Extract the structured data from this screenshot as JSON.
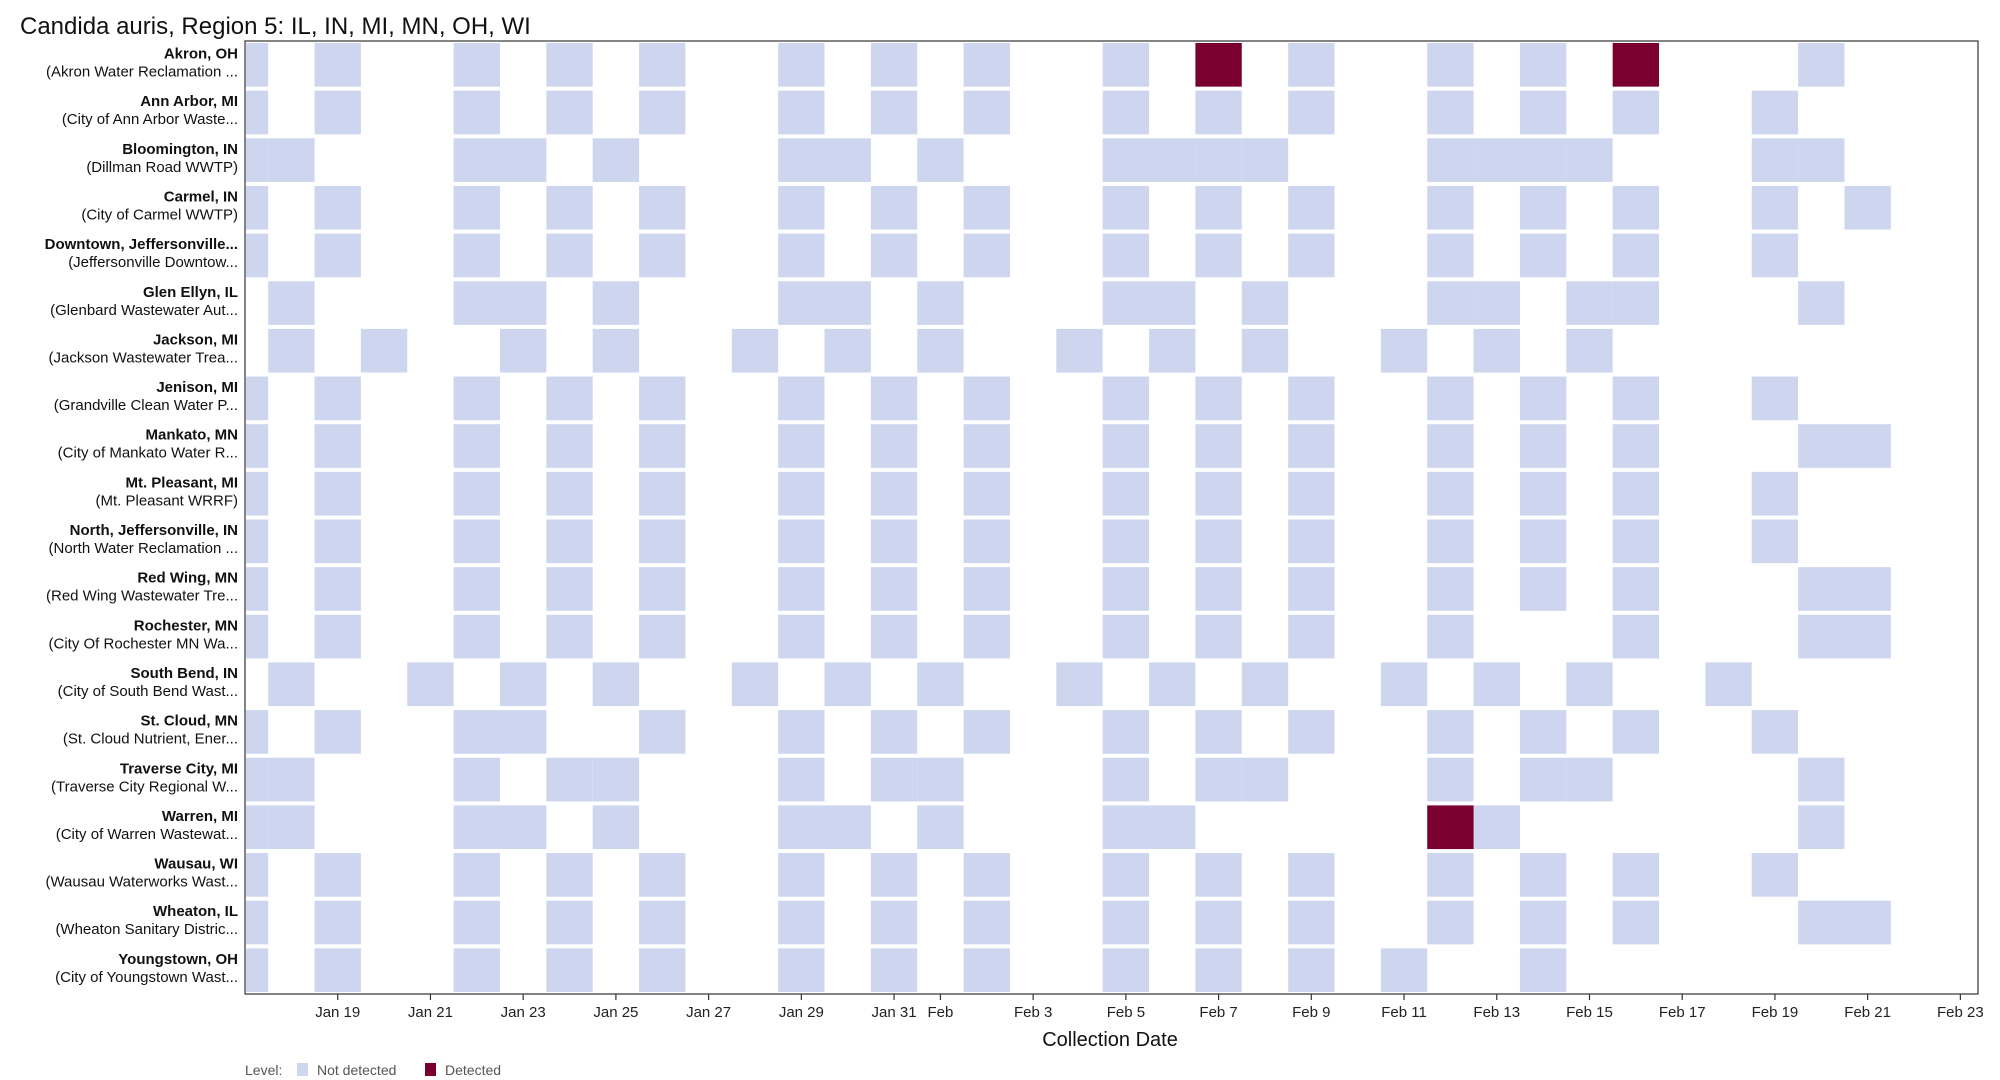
{
  "chart_data": {
    "type": "heatmap",
    "title": "Candida auris, Region 5: IL, IN, MI, MN, OH, WI",
    "xlabel": "Collection Date",
    "x_axis_type": "date",
    "xlim": [
      "2025-01-17",
      "2025-02-23"
    ],
    "x_tick_labels": [
      "Jan 19",
      "Jan 21",
      "Jan 23",
      "Jan 25",
      "Jan 27",
      "Jan 29",
      "Jan 31",
      "Feb",
      "Feb 3",
      "Feb 5",
      "Feb 7",
      "Feb 9",
      "Feb 11",
      "Feb 13",
      "Feb 15",
      "Feb 17",
      "Feb 19",
      "Feb 21",
      "Feb 23"
    ],
    "x_tick_dates": [
      "2025-01-19",
      "2025-01-21",
      "2025-01-23",
      "2025-01-25",
      "2025-01-27",
      "2025-01-29",
      "2025-01-31",
      "2025-02-01",
      "2025-02-03",
      "2025-02-05",
      "2025-02-07",
      "2025-02-09",
      "2025-02-11",
      "2025-02-13",
      "2025-02-15",
      "2025-02-17",
      "2025-02-19",
      "2025-02-21",
      "2025-02-23"
    ],
    "legend": {
      "title": "Level:",
      "position": "bottom-left",
      "items": [
        {
          "key": "not_detected",
          "label": "Not detected",
          "color": "#ced6ef"
        },
        {
          "key": "detected",
          "label": "Detected",
          "color": "#7a0030"
        }
      ]
    },
    "rows": [
      {
        "site": "Akron, OH",
        "plant": "(Akron Water Reclamation ...",
        "not_detected": [
          "2025-01-17",
          "2025-01-19",
          "2025-01-22",
          "2025-01-24",
          "2025-01-26",
          "2025-01-29",
          "2025-01-31",
          "2025-02-02",
          "2025-02-05",
          "2025-02-09",
          "2025-02-12",
          "2025-02-14",
          "2025-02-20"
        ],
        "detected": [
          "2025-02-07",
          "2025-02-16"
        ]
      },
      {
        "site": "Ann Arbor, MI",
        "plant": "(City of Ann Arbor Waste...",
        "not_detected": [
          "2025-01-17",
          "2025-01-19",
          "2025-01-22",
          "2025-01-24",
          "2025-01-26",
          "2025-01-29",
          "2025-01-31",
          "2025-02-02",
          "2025-02-05",
          "2025-02-07",
          "2025-02-09",
          "2025-02-12",
          "2025-02-14",
          "2025-02-16",
          "2025-02-19"
        ],
        "detected": []
      },
      {
        "site": "Bloomington, IN",
        "plant": "(Dillman Road WWTP)",
        "not_detected": [
          "2025-01-17",
          "2025-01-18",
          "2025-01-22",
          "2025-01-23",
          "2025-01-25",
          "2025-01-29",
          "2025-01-30",
          "2025-02-01",
          "2025-02-05",
          "2025-02-06",
          "2025-02-07",
          "2025-02-08",
          "2025-02-12",
          "2025-02-13",
          "2025-02-14",
          "2025-02-15",
          "2025-02-19",
          "2025-02-20"
        ],
        "detected": []
      },
      {
        "site": "Carmel, IN",
        "plant": "(City of Carmel WWTP)",
        "not_detected": [
          "2025-01-17",
          "2025-01-19",
          "2025-01-22",
          "2025-01-24",
          "2025-01-26",
          "2025-01-29",
          "2025-01-31",
          "2025-02-02",
          "2025-02-05",
          "2025-02-07",
          "2025-02-09",
          "2025-02-12",
          "2025-02-14",
          "2025-02-16",
          "2025-02-19",
          "2025-02-21"
        ],
        "detected": []
      },
      {
        "site": "Downtown, Jeffersonville...",
        "plant": "(Jeffersonville Downtow...",
        "not_detected": [
          "2025-01-17",
          "2025-01-19",
          "2025-01-22",
          "2025-01-24",
          "2025-01-26",
          "2025-01-29",
          "2025-01-31",
          "2025-02-02",
          "2025-02-05",
          "2025-02-07",
          "2025-02-09",
          "2025-02-12",
          "2025-02-14",
          "2025-02-16",
          "2025-02-19"
        ],
        "detected": []
      },
      {
        "site": "Glen Ellyn, IL",
        "plant": "(Glenbard Wastewater Aut...",
        "not_detected": [
          "2025-01-18",
          "2025-01-22",
          "2025-01-23",
          "2025-01-25",
          "2025-01-29",
          "2025-01-30",
          "2025-02-01",
          "2025-02-05",
          "2025-02-06",
          "2025-02-08",
          "2025-02-12",
          "2025-02-13",
          "2025-02-15",
          "2025-02-16",
          "2025-02-20"
        ],
        "detected": []
      },
      {
        "site": "Jackson, MI",
        "plant": "(Jackson Wastewater Trea...",
        "not_detected": [
          "2025-01-18",
          "2025-01-20",
          "2025-01-23",
          "2025-01-25",
          "2025-01-28",
          "2025-01-30",
          "2025-02-01",
          "2025-02-04",
          "2025-02-06",
          "2025-02-08",
          "2025-02-11",
          "2025-02-13",
          "2025-02-15"
        ],
        "detected": []
      },
      {
        "site": "Jenison, MI",
        "plant": "(Grandville Clean Water P...",
        "not_detected": [
          "2025-01-17",
          "2025-01-19",
          "2025-01-22",
          "2025-01-24",
          "2025-01-26",
          "2025-01-29",
          "2025-01-31",
          "2025-02-02",
          "2025-02-05",
          "2025-02-07",
          "2025-02-09",
          "2025-02-12",
          "2025-02-14",
          "2025-02-16",
          "2025-02-19"
        ],
        "detected": []
      },
      {
        "site": "Mankato, MN",
        "plant": "(City of Mankato Water R...",
        "not_detected": [
          "2025-01-17",
          "2025-01-19",
          "2025-01-22",
          "2025-01-24",
          "2025-01-26",
          "2025-01-29",
          "2025-01-31",
          "2025-02-02",
          "2025-02-05",
          "2025-02-07",
          "2025-02-09",
          "2025-02-12",
          "2025-02-14",
          "2025-02-16",
          "2025-02-20",
          "2025-02-21"
        ],
        "detected": []
      },
      {
        "site": "Mt. Pleasant, MI",
        "plant": "(Mt. Pleasant WRRF)",
        "not_detected": [
          "2025-01-17",
          "2025-01-19",
          "2025-01-22",
          "2025-01-24",
          "2025-01-26",
          "2025-01-29",
          "2025-01-31",
          "2025-02-02",
          "2025-02-05",
          "2025-02-07",
          "2025-02-09",
          "2025-02-12",
          "2025-02-14",
          "2025-02-16",
          "2025-02-19"
        ],
        "detected": []
      },
      {
        "site": "North, Jeffersonville, IN",
        "plant": "(North Water Reclamation ...",
        "not_detected": [
          "2025-01-17",
          "2025-01-19",
          "2025-01-22",
          "2025-01-24",
          "2025-01-26",
          "2025-01-29",
          "2025-01-31",
          "2025-02-02",
          "2025-02-05",
          "2025-02-07",
          "2025-02-09",
          "2025-02-12",
          "2025-02-14",
          "2025-02-16",
          "2025-02-19"
        ],
        "detected": []
      },
      {
        "site": "Red Wing, MN",
        "plant": "(Red Wing Wastewater Tre...",
        "not_detected": [
          "2025-01-17",
          "2025-01-19",
          "2025-01-22",
          "2025-01-24",
          "2025-01-26",
          "2025-01-29",
          "2025-01-31",
          "2025-02-02",
          "2025-02-05",
          "2025-02-07",
          "2025-02-09",
          "2025-02-12",
          "2025-02-14",
          "2025-02-16",
          "2025-02-20",
          "2025-02-21"
        ],
        "detected": []
      },
      {
        "site": "Rochester, MN",
        "plant": "(City Of Rochester MN Wa...",
        "not_detected": [
          "2025-01-17",
          "2025-01-19",
          "2025-01-22",
          "2025-01-24",
          "2025-01-26",
          "2025-01-29",
          "2025-01-31",
          "2025-02-02",
          "2025-02-05",
          "2025-02-07",
          "2025-02-09",
          "2025-02-12",
          "2025-02-16",
          "2025-02-20",
          "2025-02-21"
        ],
        "detected": []
      },
      {
        "site": "South Bend, IN",
        "plant": "(City of South Bend Wast...",
        "not_detected": [
          "2025-01-18",
          "2025-01-21",
          "2025-01-23",
          "2025-01-25",
          "2025-01-28",
          "2025-01-30",
          "2025-02-01",
          "2025-02-04",
          "2025-02-06",
          "2025-02-08",
          "2025-02-11",
          "2025-02-13",
          "2025-02-15",
          "2025-02-18"
        ],
        "detected": []
      },
      {
        "site": "St. Cloud, MN",
        "plant": "(St. Cloud Nutrient, Ener...",
        "not_detected": [
          "2025-01-17",
          "2025-01-19",
          "2025-01-22",
          "2025-01-23",
          "2025-01-26",
          "2025-01-29",
          "2025-01-31",
          "2025-02-02",
          "2025-02-05",
          "2025-02-07",
          "2025-02-09",
          "2025-02-12",
          "2025-02-14",
          "2025-02-16",
          "2025-02-19"
        ],
        "detected": []
      },
      {
        "site": "Traverse City, MI",
        "plant": "(Traverse City Regional W...",
        "not_detected": [
          "2025-01-17",
          "2025-01-18",
          "2025-01-22",
          "2025-01-24",
          "2025-01-25",
          "2025-01-29",
          "2025-01-31",
          "2025-02-01",
          "2025-02-05",
          "2025-02-07",
          "2025-02-08",
          "2025-02-12",
          "2025-02-14",
          "2025-02-15",
          "2025-02-20"
        ],
        "detected": []
      },
      {
        "site": "Warren, MI",
        "plant": "(City of Warren Wastewat...",
        "not_detected": [
          "2025-01-17",
          "2025-01-18",
          "2025-01-22",
          "2025-01-23",
          "2025-01-25",
          "2025-01-29",
          "2025-01-30",
          "2025-02-01",
          "2025-02-05",
          "2025-02-06",
          "2025-02-13",
          "2025-02-20"
        ],
        "detected": [
          "2025-02-12"
        ]
      },
      {
        "site": "Wausau, WI",
        "plant": "(Wausau Waterworks Wast...",
        "not_detected": [
          "2025-01-17",
          "2025-01-19",
          "2025-01-22",
          "2025-01-24",
          "2025-01-26",
          "2025-01-29",
          "2025-01-31",
          "2025-02-02",
          "2025-02-05",
          "2025-02-07",
          "2025-02-09",
          "2025-02-12",
          "2025-02-14",
          "2025-02-16",
          "2025-02-19"
        ],
        "detected": []
      },
      {
        "site": "Wheaton, IL",
        "plant": "(Wheaton Sanitary Distric...",
        "not_detected": [
          "2025-01-17",
          "2025-01-19",
          "2025-01-22",
          "2025-01-24",
          "2025-01-26",
          "2025-01-29",
          "2025-01-31",
          "2025-02-02",
          "2025-02-05",
          "2025-02-07",
          "2025-02-09",
          "2025-02-12",
          "2025-02-14",
          "2025-02-16",
          "2025-02-20",
          "2025-02-21"
        ],
        "detected": []
      },
      {
        "site": "Youngstown, OH",
        "plant": "(City of Youngstown Wast...",
        "not_detected": [
          "2025-01-17",
          "2025-01-19",
          "2025-01-22",
          "2025-01-24",
          "2025-01-26",
          "2025-01-29",
          "2025-01-31",
          "2025-02-02",
          "2025-02-05",
          "2025-02-07",
          "2025-02-09",
          "2025-02-11",
          "2025-02-14"
        ],
        "detected": []
      }
    ]
  }
}
